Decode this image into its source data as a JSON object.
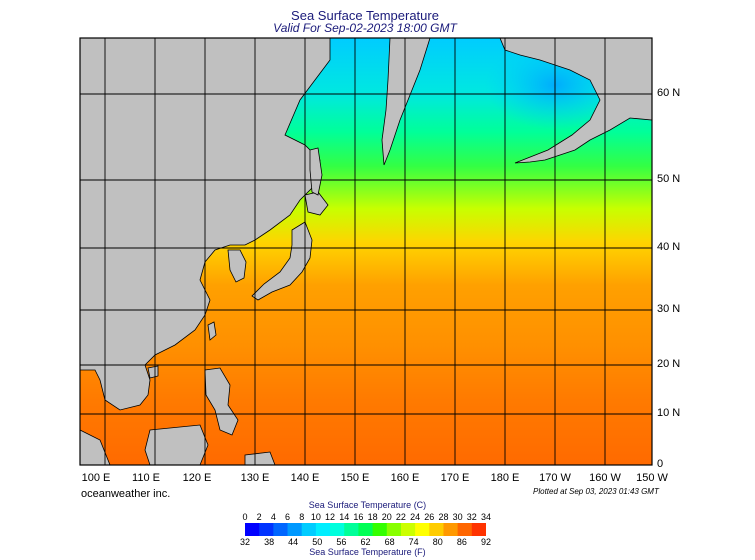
{
  "title": "Sea Surface Temperature",
  "subtitle": "Valid For Sep-02-2023 18:00 GMT",
  "longitude_labels": [
    "100 E",
    "110 E",
    "120 E",
    "130 E",
    "140 E",
    "150 E",
    "160 E",
    "170 E",
    "180 E",
    "170 W",
    "160 W",
    "150 W"
  ],
  "latitude_labels": [
    "60 N",
    "50 N",
    "40 N",
    "30 N",
    "20 N",
    "10 N",
    "0"
  ],
  "credit": "oceanweather inc.",
  "plotted": "Plotted at Sep 03, 2023 01:43 GMT",
  "colorbar": {
    "title_c": "Sea Surface Temperature (C)",
    "title_f": "Sea Surface Temperature (F)",
    "celsius_ticks": [
      "0",
      "2",
      "4",
      "6",
      "8",
      "10",
      "12",
      "14",
      "16",
      "18",
      "20",
      "22",
      "24",
      "26",
      "28",
      "30",
      "32",
      "34"
    ],
    "fahrenheit_ticks": [
      "32",
      "38",
      "44",
      "50",
      "56",
      "62",
      "68",
      "74",
      "80",
      "86",
      "92"
    ],
    "colors": [
      "#0000ff",
      "#0033ff",
      "#0066ff",
      "#0099ff",
      "#00ccff",
      "#00eeff",
      "#00ffdd",
      "#00ff99",
      "#00ff55",
      "#33ff00",
      "#88ff00",
      "#ccff00",
      "#ffff00",
      "#ffcc00",
      "#ff9900",
      "#ff6600",
      "#ff3300"
    ]
  },
  "colors": {
    "land": "#c0c0c0",
    "grid": "#000000",
    "title": "#1a1a7a"
  }
}
